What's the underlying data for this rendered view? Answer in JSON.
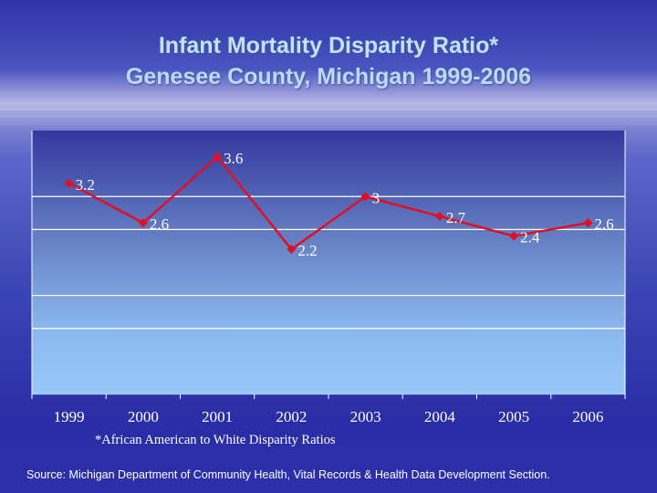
{
  "chart_data": {
    "type": "line",
    "title": "Infant Mortality Disparity Ratio*",
    "subtitle": "Genesee County, Michigan 1999-2006",
    "categories": [
      "1999",
      "2000",
      "2001",
      "2002",
      "2003",
      "2004",
      "2005",
      "2006"
    ],
    "series": [
      {
        "name": "Disparity Ratio",
        "values": [
          3.2,
          2.6,
          3.6,
          2.2,
          3,
          2.7,
          2.4,
          2.6
        ],
        "color": "#e01020"
      }
    ],
    "data_labels": [
      "3.2",
      "2.6",
      "3.6",
      "2.2",
      "3",
      "2.7",
      "2.4",
      "2.6"
    ],
    "gridlines": [
      1,
      1.5,
      2.5,
      3
    ],
    "ylim": [
      0,
      4
    ],
    "xlabel": "",
    "ylabel": "",
    "grid": true,
    "legend": "none"
  },
  "footnote": "*African American to White Disparity Ratios",
  "source": "Source: Michigan Department of Community Health, Vital Records & Health Data Development Section."
}
